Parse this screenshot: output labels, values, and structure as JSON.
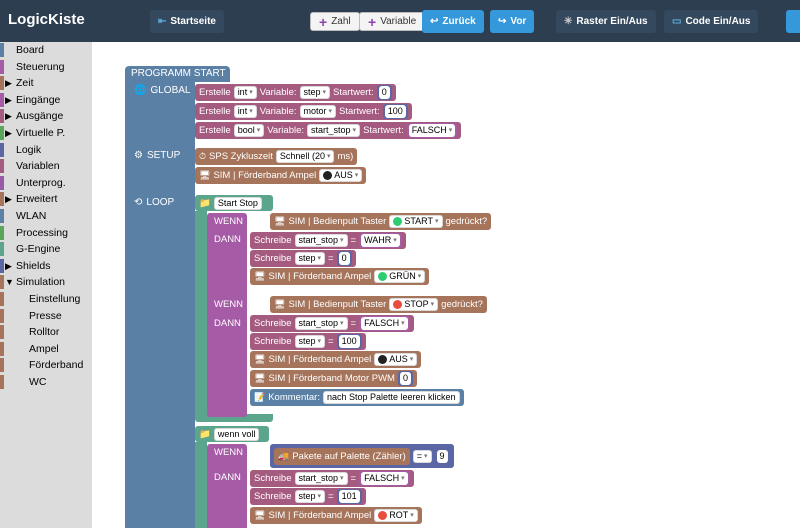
{
  "app": {
    "title": "LogicKiste"
  },
  "toolbar": {
    "startseite": "Startseite",
    "zahl": "Zahl",
    "variable": "Variable",
    "zurueck": "Zurück",
    "vor": "Vor",
    "raster": "Raster Ein/Aus",
    "code": "Code Ein/Aus"
  },
  "sidebar": {
    "items": [
      {
        "label": "Board",
        "color": "#5b80a5",
        "expand": ""
      },
      {
        "label": "Steuerung",
        "color": "#a55ba5",
        "expand": ""
      },
      {
        "label": "Zeit",
        "color": "#a5745b",
        "expand": "▶"
      },
      {
        "label": "Eingänge",
        "color": "#a55ba5",
        "expand": "▶"
      },
      {
        "label": "Ausgänge",
        "color": "#a55b80",
        "expand": "▶"
      },
      {
        "label": "Virtuelle P.",
        "color": "#5ba55b",
        "expand": "▶"
      },
      {
        "label": "Logik",
        "color": "#5b67a5",
        "expand": ""
      },
      {
        "label": "Variablen",
        "color": "#a55b80",
        "expand": ""
      },
      {
        "label": "Unterprog.",
        "color": "#995ba5",
        "expand": ""
      },
      {
        "label": "Erweitert",
        "color": "#a5745b",
        "expand": "▶"
      },
      {
        "label": "WLAN",
        "color": "#5b80a5",
        "expand": ""
      },
      {
        "label": "Processing",
        "color": "#5ba55b",
        "expand": ""
      },
      {
        "label": "G-Engine",
        "color": "#5ba58c",
        "expand": ""
      },
      {
        "label": "Shields",
        "color": "#5b67a5",
        "expand": "▶"
      },
      {
        "label": "Simulation",
        "color": "#a5745b",
        "expand": "▼"
      },
      {
        "label": "Einstellung",
        "color": "#a5745b",
        "expand": "",
        "sub": true
      },
      {
        "label": "Presse",
        "color": "#a5745b",
        "expand": "",
        "sub": true
      },
      {
        "label": "Rolltor",
        "color": "#a5745b",
        "expand": "",
        "sub": true
      },
      {
        "label": "Ampel",
        "color": "#a5745b",
        "expand": "",
        "sub": true
      },
      {
        "label": "Förderband",
        "color": "#a5745b",
        "expand": "",
        "sub": true
      },
      {
        "label": "WC",
        "color": "#a5745b",
        "expand": "",
        "sub": true
      }
    ]
  },
  "program": {
    "header": "PROGRAMM START",
    "global_label": "GLOBAL",
    "setup_label": "SETUP",
    "loop_label": "LOOP",
    "globals": [
      {
        "erstelle": "Erstelle",
        "type": "int",
        "var_label": "Variable:",
        "var": "step",
        "start_label": "Startwert:",
        "value": "0"
      },
      {
        "erstelle": "Erstelle",
        "type": "int",
        "var_label": "Variable:",
        "var": "motor",
        "start_label": "Startwert:",
        "value": "100"
      },
      {
        "erstelle": "Erstelle",
        "type": "bool",
        "var_label": "Variable:",
        "var": "start_stop",
        "start_label": "Startwert:",
        "value": "FALSCH"
      }
    ],
    "setup": {
      "sps_label": "SPS Zykluszeit",
      "sps_value": "Schnell (20",
      "sps_unit": "ms)",
      "ampel_label": "SIM | Förderband Ampel",
      "ampel_value": "AUS"
    },
    "loop": {
      "group1": "Start Stop",
      "if1": {
        "wenn": "WENN",
        "cond": "SIM | Bedienpult Taster",
        "button": "START",
        "suffix": "gedrückt?",
        "dann": "DANN",
        "s1_label": "Schreibe",
        "s1_var": "start_stop",
        "s1_val": "WAHR",
        "s2_label": "Schreibe",
        "s2_var": "step",
        "s2_val": "0",
        "ampel_label": "SIM | Förderband Ampel",
        "ampel_val": "GRÜN"
      },
      "if2": {
        "wenn": "WENN",
        "cond": "SIM | Bedienpult Taster",
        "button": "STOP",
        "suffix": "gedrückt?",
        "dann": "DANN",
        "s1_label": "Schreibe",
        "s1_var": "start_stop",
        "s1_val": "FALSCH",
        "s2_label": "Schreibe",
        "s2_var": "step",
        "s2_val": "100",
        "ampel_label": "SIM | Förderband Ampel",
        "ampel_val": "AUS",
        "motor_label": "SIM | Förderband Motor PWM",
        "motor_val": "0",
        "komm_label": "Kommentar:",
        "komm_val": "nach Stop Palette leeren klicken"
      },
      "group2": "wenn voll",
      "if3": {
        "wenn": "WENN",
        "cond": "Pakete auf Palette (Zähler)",
        "op": "=",
        "cmp": "9",
        "dann": "DANN",
        "s1_label": "Schreibe",
        "s1_var": "start_stop",
        "s1_val": "FALSCH",
        "s2_label": "Schreibe",
        "s2_var": "step",
        "s2_val": "101",
        "ampel_label": "SIM | Förderband Ampel",
        "ampel_val": "ROT"
      },
      "equals": "="
    }
  },
  "colors": {
    "topbar": "#2c3e50",
    "button_blue": "#3498db",
    "program": "#5b80a5",
    "variables": "#a55b80",
    "simulation": "#a5745b",
    "logic_if": "#a55ba5",
    "group": "#5ba58c",
    "math": "#5b67a5"
  }
}
